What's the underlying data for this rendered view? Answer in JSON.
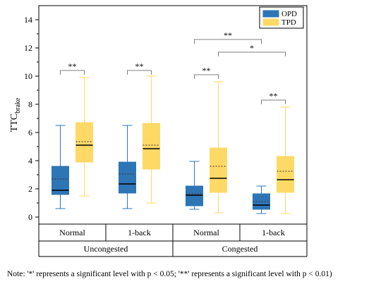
{
  "chart_data": {
    "type": "box",
    "ylabel_main": "TTC",
    "ylabel_sub": "brake",
    "ylim": [
      -0.5,
      15
    ],
    "yticks": [
      0,
      2,
      4,
      6,
      8,
      10,
      12,
      14
    ],
    "grid": false,
    "legend_position": "top-right",
    "legend": [
      {
        "name": "OPD",
        "color": "#2e75b6"
      },
      {
        "name": "TPD",
        "color": "#ffd966"
      }
    ],
    "groups": [
      {
        "label": "Normal",
        "parent": "Uncongested",
        "boxes": [
          {
            "series": "OPD",
            "min": 0.6,
            "q1": 1.6,
            "median": 1.9,
            "mean": 2.7,
            "q3": 3.6,
            "max": 6.5
          },
          {
            "series": "TPD",
            "min": 1.5,
            "q1": 3.9,
            "median": 5.1,
            "mean": 5.35,
            "q3": 6.7,
            "max": 9.9
          }
        ]
      },
      {
        "label": "1-back",
        "parent": "Uncongested",
        "boxes": [
          {
            "series": "OPD",
            "min": 0.6,
            "q1": 1.7,
            "median": 2.35,
            "mean": 3.05,
            "q3": 3.9,
            "max": 6.5
          },
          {
            "series": "TPD",
            "min": 1.0,
            "q1": 3.4,
            "median": 4.85,
            "mean": 5.1,
            "q3": 6.65,
            "max": 10.0
          }
        ]
      },
      {
        "label": "Normal",
        "parent": "Congested",
        "boxes": [
          {
            "series": "OPD",
            "min": 0.55,
            "q1": 0.8,
            "median": 1.55,
            "mean": 1.65,
            "q3": 2.2,
            "max": 3.95
          },
          {
            "series": "TPD",
            "min": 0.3,
            "q1": 1.75,
            "median": 2.75,
            "mean": 3.6,
            "q3": 4.9,
            "max": 9.6
          }
        ]
      },
      {
        "label": "1-back",
        "parent": "Congested",
        "boxes": [
          {
            "series": "OPD",
            "min": 0.25,
            "q1": 0.55,
            "median": 0.85,
            "mean": 1.1,
            "q3": 1.65,
            "max": 2.2
          },
          {
            "series": "TPD",
            "min": 0.25,
            "q1": 1.75,
            "median": 2.65,
            "mean": 3.25,
            "q3": 4.3,
            "max": 7.8
          }
        ]
      }
    ],
    "parents": [
      "Uncongested",
      "Congested"
    ],
    "significance": [
      {
        "label": "**",
        "from": [
          0,
          0
        ],
        "to": [
          0,
          1
        ],
        "y": 10.4
      },
      {
        "label": "**",
        "from": [
          1,
          0
        ],
        "to": [
          1,
          1
        ],
        "y": 10.4
      },
      {
        "label": "**",
        "from": [
          2,
          0
        ],
        "to": [
          2,
          1
        ],
        "y": 10.1
      },
      {
        "label": "**",
        "from": [
          3,
          0
        ],
        "to": [
          3,
          1
        ],
        "y": 8.3
      },
      {
        "label": "**",
        "from": [
          2,
          0
        ],
        "to": [
          3,
          0
        ],
        "y": 12.6
      },
      {
        "label": "*",
        "from": [
          2,
          1
        ],
        "to": [
          3,
          1
        ],
        "y": 11.7
      }
    ]
  },
  "note": "Note: '*' represents a significant level with p < 0.05; '**' represents a significant level with p < 0.01)"
}
